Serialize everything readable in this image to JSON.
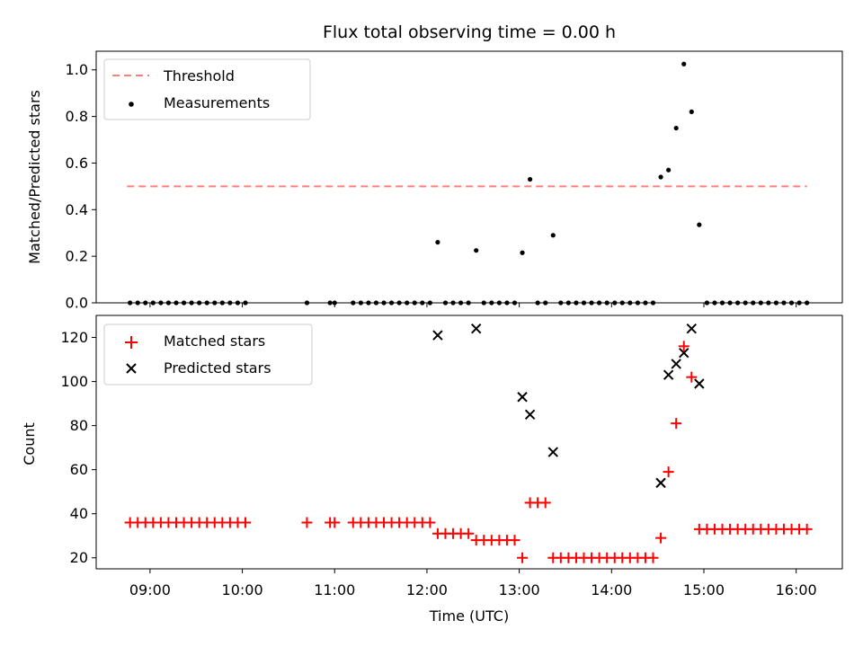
{
  "chart_data": [
    {
      "type": "scatter",
      "title": "Flux total observing time = 0.00 h",
      "ylabel": "Matched/Predicted stars",
      "ylim": [
        0,
        1.08
      ],
      "y_ticks": [
        "0.0",
        "0.2",
        "0.4",
        "0.6",
        "0.8",
        "1.0"
      ],
      "grid": false,
      "legend_position": "top-left",
      "series": [
        {
          "name": "Threshold",
          "kind": "line",
          "style": "dashed",
          "color": "#ff7f7f",
          "x": [
            "08:45",
            "16:07"
          ],
          "values": [
            0.5,
            0.5
          ]
        },
        {
          "name": "Measurements",
          "kind": "scatter",
          "marker": "dot",
          "color": "#000000",
          "x": [
            "08:47",
            "08:52",
            "08:57",
            "09:02",
            "09:07",
            "09:12",
            "09:17",
            "09:22",
            "09:27",
            "09:32",
            "09:37",
            "09:42",
            "09:47",
            "09:52",
            "09:57",
            "10:02",
            "10:42",
            "10:57",
            "11:00",
            "11:12",
            "11:17",
            "11:22",
            "11:27",
            "11:32",
            "11:37",
            "11:42",
            "11:47",
            "11:52",
            "11:57",
            "12:02",
            "12:07",
            "12:12",
            "12:17",
            "12:22",
            "12:27",
            "12:32",
            "12:37",
            "12:42",
            "12:47",
            "12:52",
            "12:57",
            "13:02",
            "13:07",
            "13:12",
            "13:17",
            "13:22",
            "13:27",
            "13:32",
            "13:37",
            "13:42",
            "13:47",
            "13:52",
            "13:57",
            "14:02",
            "14:07",
            "14:12",
            "14:17",
            "14:22",
            "14:27",
            "14:32",
            "14:37",
            "14:42",
            "14:47",
            "14:52",
            "14:57",
            "15:02",
            "15:07",
            "15:12",
            "15:17",
            "15:22",
            "15:27",
            "15:32",
            "15:37",
            "15:42",
            "15:47",
            "15:52",
            "15:57",
            "16:02",
            "16:07"
          ],
          "values": [
            0,
            0,
            0,
            0,
            0,
            0,
            0,
            0,
            0,
            0,
            0,
            0,
            0,
            0,
            0,
            0,
            0,
            0,
            0,
            0,
            0,
            0,
            0,
            0,
            0,
            0,
            0,
            0,
            0,
            0,
            0.26,
            0,
            0,
            0,
            0,
            0.225,
            0,
            0,
            0,
            0,
            0,
            0.215,
            0.53,
            0,
            0,
            0.29,
            0,
            0,
            0,
            0,
            0,
            0,
            0,
            0,
            0,
            0,
            0,
            0,
            0,
            0.54,
            0.57,
            0.75,
            1.025,
            0.82,
            0.335,
            0,
            0,
            0,
            0,
            0,
            0,
            0,
            0,
            0,
            0,
            0,
            0,
            0,
            0
          ]
        }
      ]
    },
    {
      "type": "scatter",
      "xlabel": "Time (UTC)",
      "ylabel": "Count",
      "ylim": [
        15,
        130
      ],
      "y_ticks": [
        "20",
        "40",
        "60",
        "80",
        "100",
        "120"
      ],
      "x_range": [
        "08:25",
        "16:30"
      ],
      "x_ticks": [
        "09:00",
        "10:00",
        "11:00",
        "12:00",
        "13:00",
        "14:00",
        "15:00",
        "16:00"
      ],
      "grid": false,
      "legend_position": "top-left",
      "series": [
        {
          "name": "Matched stars",
          "kind": "scatter",
          "marker": "plus",
          "color": "#ff0000",
          "x": [
            "08:47",
            "08:52",
            "08:57",
            "09:02",
            "09:07",
            "09:12",
            "09:17",
            "09:22",
            "09:27",
            "09:32",
            "09:37",
            "09:42",
            "09:47",
            "09:52",
            "09:57",
            "10:02",
            "10:42",
            "10:57",
            "11:00",
            "11:12",
            "11:17",
            "11:22",
            "11:27",
            "11:32",
            "11:37",
            "11:42",
            "11:47",
            "11:52",
            "11:57",
            "12:02",
            "12:07",
            "12:12",
            "12:17",
            "12:22",
            "12:27",
            "12:32",
            "12:37",
            "12:42",
            "12:47",
            "12:52",
            "12:57",
            "13:02",
            "13:07",
            "13:12",
            "13:17",
            "13:22",
            "13:27",
            "13:32",
            "13:37",
            "13:42",
            "13:47",
            "13:52",
            "13:57",
            "14:02",
            "14:07",
            "14:12",
            "14:17",
            "14:22",
            "14:27",
            "14:32",
            "14:37",
            "14:42",
            "14:47",
            "14:52",
            "14:57",
            "15:02",
            "15:07",
            "15:12",
            "15:17",
            "15:22",
            "15:27",
            "15:32",
            "15:37",
            "15:42",
            "15:47",
            "15:52",
            "15:57",
            "16:02",
            "16:07"
          ],
          "values": [
            36,
            36,
            36,
            36,
            36,
            36,
            36,
            36,
            36,
            36,
            36,
            36,
            36,
            36,
            36,
            36,
            36,
            36,
            36,
            36,
            36,
            36,
            36,
            36,
            36,
            36,
            36,
            36,
            36,
            36,
            31,
            31,
            31,
            31,
            31,
            28,
            28,
            28,
            28,
            28,
            28,
            20,
            45,
            45,
            45,
            20,
            20,
            20,
            20,
            20,
            20,
            20,
            20,
            20,
            20,
            20,
            20,
            20,
            20,
            29,
            59,
            81,
            116,
            102,
            33,
            33,
            33,
            33,
            33,
            33,
            33,
            33,
            33,
            33,
            33,
            33,
            33,
            33,
            33
          ]
        },
        {
          "name": "Predicted stars",
          "kind": "scatter",
          "marker": "x",
          "color": "#000000",
          "x": [
            "12:07",
            "12:32",
            "13:02",
            "13:07",
            "13:22",
            "14:32",
            "14:37",
            "14:42",
            "14:47",
            "14:52",
            "14:57"
          ],
          "values": [
            121,
            124,
            93,
            85,
            68,
            54,
            103,
            108,
            113,
            124,
            99
          ]
        }
      ]
    }
  ]
}
